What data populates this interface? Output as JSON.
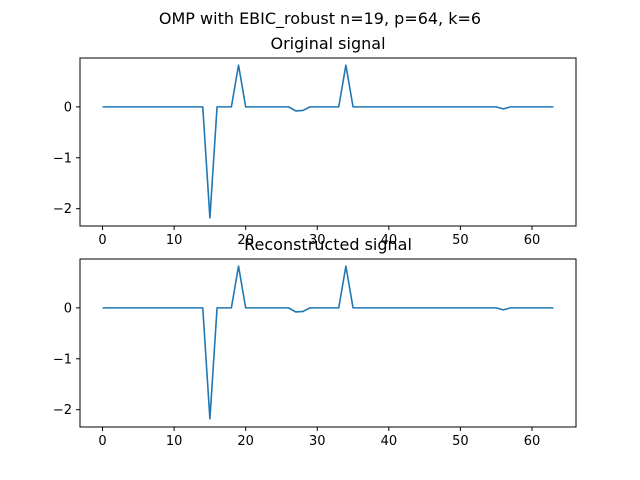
{
  "figure": {
    "suptitle": "OMP with EBIC_robust n=19, p=64, k=6"
  },
  "chart_data": [
    {
      "type": "line",
      "title": "Original signal",
      "xlabel": "",
      "ylabel": "",
      "xlim": [
        -3.15,
        66.15
      ],
      "ylim": [
        -2.34,
        0.96
      ],
      "xticks": [
        0,
        10,
        20,
        30,
        40,
        50,
        60
      ],
      "xtick_labels": [
        "0",
        "10",
        "20",
        "30",
        "40",
        "50",
        "60"
      ],
      "yticks": [
        0,
        -1,
        -2
      ],
      "ytick_labels": [
        "0",
        "−1",
        "−2"
      ],
      "grid": false,
      "series": [
        {
          "color": "#1f77b4",
          "x": [
            0,
            1,
            2,
            3,
            4,
            5,
            6,
            7,
            8,
            9,
            10,
            11,
            12,
            13,
            14,
            15,
            16,
            17,
            18,
            19,
            20,
            21,
            22,
            23,
            24,
            25,
            26,
            27,
            28,
            29,
            30,
            31,
            32,
            33,
            34,
            35,
            36,
            37,
            38,
            39,
            40,
            41,
            42,
            43,
            44,
            45,
            46,
            47,
            48,
            49,
            50,
            51,
            52,
            53,
            54,
            55,
            56,
            57,
            58,
            59,
            60,
            61,
            62,
            63
          ],
          "y": [
            0,
            0,
            0,
            0,
            0,
            0,
            0,
            0,
            0,
            0,
            0,
            0,
            0,
            0,
            0,
            -2.18,
            0,
            0,
            0,
            0.82,
            0,
            0,
            0,
            0,
            0,
            0,
            0,
            -0.08,
            -0.07,
            0,
            0,
            0,
            0,
            0,
            0.82,
            0,
            0,
            0,
            0,
            0,
            0,
            0,
            0,
            0,
            0,
            0,
            0,
            0,
            0,
            0,
            0,
            0,
            0,
            0,
            0,
            0,
            -0.04,
            0,
            0,
            0,
            0,
            0,
            0,
            0
          ]
        }
      ]
    },
    {
      "type": "line",
      "title": "Reconstructed signal",
      "xlabel": "",
      "ylabel": "",
      "xlim": [
        -3.15,
        66.15
      ],
      "ylim": [
        -2.34,
        0.96
      ],
      "xticks": [
        0,
        10,
        20,
        30,
        40,
        50,
        60
      ],
      "xtick_labels": [
        "0",
        "10",
        "20",
        "30",
        "40",
        "50",
        "60"
      ],
      "yticks": [
        0,
        -1,
        -2
      ],
      "ytick_labels": [
        "0",
        "−1",
        "−2"
      ],
      "grid": false,
      "series": [
        {
          "color": "#1f77b4",
          "x": [
            0,
            1,
            2,
            3,
            4,
            5,
            6,
            7,
            8,
            9,
            10,
            11,
            12,
            13,
            14,
            15,
            16,
            17,
            18,
            19,
            20,
            21,
            22,
            23,
            24,
            25,
            26,
            27,
            28,
            29,
            30,
            31,
            32,
            33,
            34,
            35,
            36,
            37,
            38,
            39,
            40,
            41,
            42,
            43,
            44,
            45,
            46,
            47,
            48,
            49,
            50,
            51,
            52,
            53,
            54,
            55,
            56,
            57,
            58,
            59,
            60,
            61,
            62,
            63
          ],
          "y": [
            0,
            0,
            0,
            0,
            0,
            0,
            0,
            0,
            0,
            0,
            0,
            0,
            0,
            0,
            0,
            -2.18,
            0,
            0,
            0,
            0.82,
            0,
            0,
            0,
            0,
            0,
            0,
            0,
            -0.08,
            -0.07,
            0,
            0,
            0,
            0,
            0,
            0.82,
            0,
            0,
            0,
            0,
            0,
            0,
            0,
            0,
            0,
            0,
            0,
            0,
            0,
            0,
            0,
            0,
            0,
            0,
            0,
            0,
            0,
            -0.04,
            0,
            0,
            0,
            0,
            0,
            0,
            0
          ]
        }
      ]
    }
  ]
}
